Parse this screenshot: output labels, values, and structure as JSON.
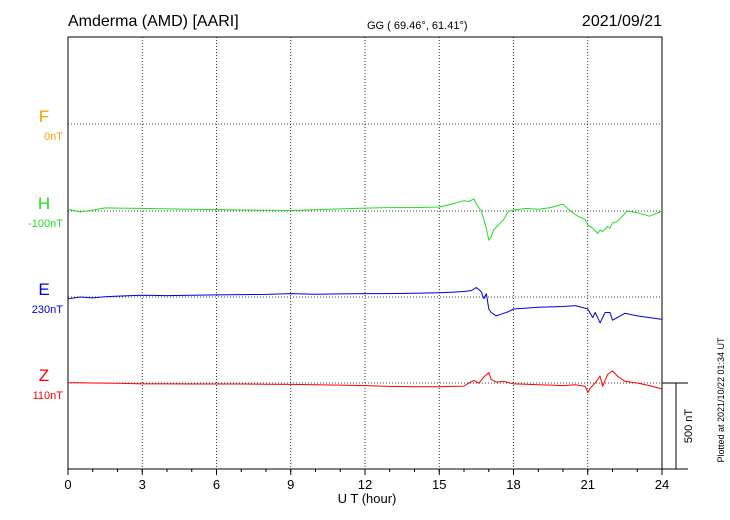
{
  "header": {
    "station": "Amderma (AMD)  [AARI]",
    "coords": "GG ( 69.46°,  61.41°)",
    "date": "2021/09/21"
  },
  "side_note": "Plotted at 2021/10/22 01:34 UT",
  "chart_data": {
    "type": "line",
    "xlabel": "U T (hour)",
    "xlim": [
      0,
      24
    ],
    "xticks": [
      "0",
      "3",
      "6",
      "9",
      "12",
      "15",
      "18",
      "21",
      "24"
    ],
    "grid": true,
    "scale_bar": {
      "label": "500 nT",
      "value_nT": 500
    },
    "series": [
      {
        "name": "F",
        "baseline": "0nT",
        "color": "#f0a000",
        "x": [],
        "y": []
      },
      {
        "name": "H",
        "baseline": "-100nT",
        "color": "#22dd22",
        "x": [
          0,
          0.5,
          1,
          1.5,
          2,
          3,
          4,
          5,
          6,
          7,
          8,
          9,
          10,
          11,
          12,
          13,
          14,
          15,
          15.5,
          16,
          16.2,
          16.4,
          16.5,
          16.6,
          16.7,
          16.8,
          16.9,
          17.0,
          17.1,
          17.2,
          17.4,
          17.6,
          17.8,
          18,
          18.5,
          19,
          19.5,
          20,
          20.3,
          20.6,
          20.9,
          21.0,
          21.2,
          21.4,
          21.5,
          21.6,
          21.8,
          21.9,
          22.0,
          22.2,
          22.4,
          22.6,
          23,
          23.5,
          24
        ],
        "y": [
          -90,
          -105,
          -95,
          -82,
          -83,
          -85,
          -88,
          -90,
          -92,
          -94,
          -96,
          -97,
          -93,
          -88,
          -83,
          -80,
          -80,
          -77,
          -60,
          -40,
          -45,
          -30,
          -60,
          -80,
          -100,
          -150,
          -200,
          -270,
          -250,
          -210,
          -180,
          -150,
          -100,
          -95,
          -85,
          -90,
          -80,
          -60,
          -100,
          -130,
          -150,
          -180,
          -200,
          -230,
          -210,
          -220,
          -190,
          -200,
          -170,
          -160,
          -130,
          -100,
          -110,
          -130,
          -100
        ]
      },
      {
        "name": "E",
        "baseline": "230nT",
        "color": "#0000dd",
        "x": [
          0,
          0.5,
          1,
          1.5,
          2,
          3,
          4,
          5,
          6,
          7,
          8,
          9,
          10,
          11,
          12,
          13,
          14,
          15,
          15.5,
          16,
          16.3,
          16.5,
          16.7,
          16.8,
          16.9,
          17.0,
          17.1,
          17.3,
          17.5,
          17.8,
          18,
          19,
          20,
          20.5,
          21,
          21.2,
          21.3,
          21.5,
          21.7,
          21.9,
          22.0,
          22.2,
          22.5,
          23,
          23.5,
          24
        ],
        "y": [
          220,
          230,
          225,
          232,
          235,
          240,
          238,
          240,
          242,
          244,
          245,
          250,
          246,
          248,
          250,
          250,
          252,
          255,
          258,
          262,
          268,
          285,
          260,
          220,
          250,
          160,
          140,
          120,
          130,
          145,
          160,
          170,
          175,
          180,
          160,
          110,
          140,
          80,
          140,
          140,
          95,
          110,
          135,
          120,
          110,
          100
        ]
      },
      {
        "name": "Z",
        "baseline": "110nT",
        "color": "#ff0000",
        "x": [
          0,
          0.5,
          1,
          2,
          3,
          4,
          5,
          6,
          7,
          8,
          9,
          10,
          11,
          12,
          13,
          14,
          15,
          15.5,
          16,
          16.2,
          16.4,
          16.6,
          16.8,
          17.0,
          17.1,
          17.3,
          17.6,
          18,
          18.5,
          19,
          19.5,
          20,
          20.5,
          20.9,
          21.0,
          21.1,
          21.3,
          21.5,
          21.6,
          21.8,
          22.0,
          22.2,
          22.5,
          23,
          23.5,
          24
        ],
        "y": [
          112,
          112,
          110,
          108,
          105,
          105,
          104,
          104,
          104,
          103,
          102,
          100,
          98,
          95,
          90,
          88,
          88,
          90,
          92,
          110,
          125,
          108,
          145,
          170,
          130,
          115,
          120,
          105,
          103,
          100,
          98,
          95,
          100,
          90,
          55,
          80,
          110,
          150,
          90,
          160,
          180,
          150,
          120,
          110,
          95,
          75
        ]
      }
    ]
  }
}
